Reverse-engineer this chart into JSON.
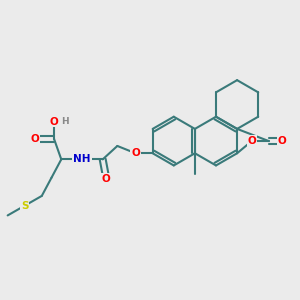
{
  "bg_color": "#ebebeb",
  "bond_color": "#3a7a7a",
  "bond_width": 1.5,
  "atom_colors": {
    "O": "#ff0000",
    "N": "#0000cc",
    "S": "#cccc00",
    "H": "#888888",
    "C": "#3a7a7a"
  },
  "font_size": 7.5,
  "fig_size": [
    3.0,
    3.0
  ],
  "dpi": 100
}
